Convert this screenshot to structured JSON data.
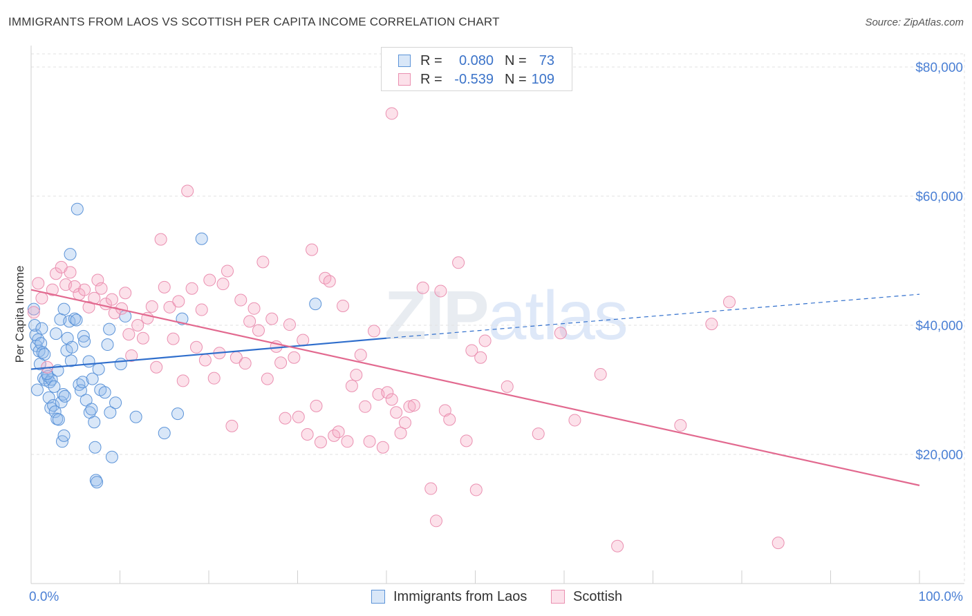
{
  "title": "IMMIGRANTS FROM LAOS VS SCOTTISH PER CAPITA INCOME CORRELATION CHART",
  "source": "Source: ZipAtlas.com",
  "watermark": {
    "part1": "ZIP",
    "part2": "atlas"
  },
  "legend": {
    "rows": [
      {
        "r_label": "R =",
        "r_value": "0.080",
        "n_label": "N =",
        "n_value": "73"
      },
      {
        "r_label": "R =",
        "r_value": "-0.539",
        "n_label": "N =",
        "n_value": "109"
      }
    ]
  },
  "bottom_legend": {
    "items": [
      {
        "label": "Immigrants from Laos"
      },
      {
        "label": "Scottish"
      }
    ]
  },
  "colors": {
    "blue_fill": "rgba(145,185,235,0.35)",
    "blue_stroke": "#5b93d8",
    "blue_line": "#2f6ecc",
    "pink_fill": "rgba(245,170,195,0.35)",
    "pink_stroke": "#ea8fb0",
    "pink_line": "#e2698f",
    "tick_text": "#4a7fd4"
  },
  "chart_data": {
    "type": "scatter",
    "title": "IMMIGRANTS FROM LAOS VS SCOTTISH PER CAPITA INCOME CORRELATION CHART",
    "xlabel": "",
    "ylabel": "Per Capita Income",
    "xlim": [
      0,
      100
    ],
    "ylim": [
      0,
      80000
    ],
    "x_tick_labels": [
      "0.0%",
      "100.0%"
    ],
    "y_ticks": [
      20000,
      40000,
      60000,
      80000
    ],
    "y_tick_labels": [
      "$20,000",
      "$40,000",
      "$60,000",
      "$80,000"
    ],
    "grid": true,
    "series": [
      {
        "name": "Immigrants from Laos",
        "color": "blue",
        "R": 0.08,
        "N": 73,
        "trend": {
          "x0": 0,
          "y0": 33200,
          "x1": 40,
          "y1": 38000,
          "dashed_to_x": 100,
          "dashed_to_y": 44800
        },
        "points": [
          [
            0.3,
            42500
          ],
          [
            0.5,
            38500
          ],
          [
            0.6,
            36800
          ],
          [
            0.8,
            37800
          ],
          [
            0.9,
            36000
          ],
          [
            1.1,
            37200
          ],
          [
            1.3,
            35800
          ],
          [
            1.5,
            35500
          ],
          [
            1.4,
            31800
          ],
          [
            1.6,
            31500
          ],
          [
            1.9,
            32100
          ],
          [
            2.1,
            31200
          ],
          [
            2.3,
            31600
          ],
          [
            2.0,
            28800
          ],
          [
            2.2,
            27200
          ],
          [
            2.5,
            27600
          ],
          [
            2.7,
            26600
          ],
          [
            2.9,
            25500
          ],
          [
            3.1,
            25400
          ],
          [
            3.4,
            28100
          ],
          [
            3.6,
            29300
          ],
          [
            3.8,
            29000
          ],
          [
            3.5,
            22000
          ],
          [
            3.7,
            22900
          ],
          [
            2.8,
            38700
          ],
          [
            3.3,
            40900
          ],
          [
            3.7,
            42500
          ],
          [
            4.0,
            36100
          ],
          [
            4.1,
            38000
          ],
          [
            4.3,
            40600
          ],
          [
            4.5,
            34500
          ],
          [
            4.6,
            36600
          ],
          [
            4.9,
            41000
          ],
          [
            5.1,
            40800
          ],
          [
            4.4,
            51000
          ],
          [
            5.4,
            30800
          ],
          [
            5.6,
            29900
          ],
          [
            5.8,
            31200
          ],
          [
            5.9,
            38300
          ],
          [
            6.0,
            37500
          ],
          [
            6.2,
            28400
          ],
          [
            6.5,
            34400
          ],
          [
            6.6,
            26500
          ],
          [
            6.9,
            31700
          ],
          [
            7.1,
            25000
          ],
          [
            7.2,
            21100
          ],
          [
            7.3,
            16000
          ],
          [
            7.4,
            15700
          ],
          [
            5.2,
            58000
          ],
          [
            7.6,
            33200
          ],
          [
            7.8,
            30000
          ],
          [
            8.3,
            29600
          ],
          [
            8.6,
            37000
          ],
          [
            8.8,
            39400
          ],
          [
            8.9,
            26500
          ],
          [
            9.1,
            19600
          ],
          [
            10.1,
            34000
          ],
          [
            10.6,
            41400
          ],
          [
            11.8,
            25800
          ],
          [
            15.0,
            23300
          ],
          [
            16.5,
            26300
          ],
          [
            17.0,
            41000
          ],
          [
            19.2,
            53400
          ],
          [
            32.0,
            43300
          ],
          [
            0.4,
            40000
          ],
          [
            1.0,
            34000
          ],
          [
            1.8,
            32500
          ],
          [
            2.6,
            30500
          ],
          [
            3.0,
            33000
          ],
          [
            0.7,
            30000
          ],
          [
            1.2,
            39500
          ],
          [
            6.8,
            27000
          ],
          [
            9.5,
            28000
          ]
        ]
      },
      {
        "name": "Scottish",
        "color": "pink",
        "R": -0.539,
        "N": 109,
        "trend": {
          "x0": 0,
          "y0": 45500,
          "x1": 100,
          "y1": 15200
        },
        "points": [
          [
            0.3,
            42000
          ],
          [
            1.2,
            44200
          ],
          [
            1.8,
            33500
          ],
          [
            2.4,
            45500
          ],
          [
            2.8,
            48000
          ],
          [
            3.4,
            49000
          ],
          [
            3.9,
            46300
          ],
          [
            4.4,
            48200
          ],
          [
            4.9,
            46000
          ],
          [
            5.4,
            44800
          ],
          [
            6.0,
            45500
          ],
          [
            6.5,
            42800
          ],
          [
            7.1,
            44200
          ],
          [
            7.5,
            47000
          ],
          [
            7.9,
            45700
          ],
          [
            8.4,
            43300
          ],
          [
            9.1,
            44000
          ],
          [
            9.4,
            41900
          ],
          [
            10.2,
            42600
          ],
          [
            10.6,
            45000
          ],
          [
            11.0,
            38600
          ],
          [
            11.3,
            35300
          ],
          [
            12.0,
            40000
          ],
          [
            12.6,
            38000
          ],
          [
            13.1,
            41100
          ],
          [
            13.6,
            42900
          ],
          [
            14.1,
            33500
          ],
          [
            14.6,
            53300
          ],
          [
            15.0,
            45900
          ],
          [
            15.6,
            42800
          ],
          [
            16.0,
            37900
          ],
          [
            16.6,
            43700
          ],
          [
            17.1,
            31400
          ],
          [
            17.6,
            60800
          ],
          [
            18.1,
            45700
          ],
          [
            18.6,
            36600
          ],
          [
            19.2,
            42400
          ],
          [
            19.6,
            34600
          ],
          [
            20.1,
            47000
          ],
          [
            20.6,
            31800
          ],
          [
            21.2,
            35700
          ],
          [
            21.6,
            46400
          ],
          [
            22.1,
            48400
          ],
          [
            22.6,
            24400
          ],
          [
            23.1,
            35000
          ],
          [
            23.6,
            43900
          ],
          [
            24.1,
            34100
          ],
          [
            24.6,
            40600
          ],
          [
            25.1,
            42600
          ],
          [
            25.6,
            39200
          ],
          [
            26.1,
            49800
          ],
          [
            26.6,
            31700
          ],
          [
            27.1,
            41000
          ],
          [
            27.6,
            36700
          ],
          [
            28.1,
            34200
          ],
          [
            28.6,
            25600
          ],
          [
            29.1,
            40100
          ],
          [
            29.6,
            35000
          ],
          [
            30.1,
            25800
          ],
          [
            30.6,
            37700
          ],
          [
            31.1,
            23100
          ],
          [
            31.6,
            51700
          ],
          [
            32.1,
            27500
          ],
          [
            32.6,
            21900
          ],
          [
            33.1,
            47300
          ],
          [
            33.6,
            46800
          ],
          [
            34.1,
            22900
          ],
          [
            34.6,
            23500
          ],
          [
            35.1,
            43000
          ],
          [
            35.6,
            22000
          ],
          [
            36.1,
            30600
          ],
          [
            36.6,
            32300
          ],
          [
            37.1,
            35400
          ],
          [
            37.6,
            27400
          ],
          [
            38.1,
            22000
          ],
          [
            38.6,
            39100
          ],
          [
            39.1,
            29300
          ],
          [
            39.6,
            21100
          ],
          [
            40.1,
            29600
          ],
          [
            40.6,
            28500
          ],
          [
            41.1,
            26500
          ],
          [
            41.6,
            23300
          ],
          [
            42.1,
            24900
          ],
          [
            42.6,
            27400
          ],
          [
            43.1,
            27600
          ],
          [
            44.1,
            45800
          ],
          [
            45.0,
            14700
          ],
          [
            45.6,
            9700
          ],
          [
            46.1,
            45300
          ],
          [
            46.6,
            26800
          ],
          [
            47.1,
            25400
          ],
          [
            48.1,
            49700
          ],
          [
            49.0,
            22100
          ],
          [
            49.6,
            36100
          ],
          [
            50.1,
            14500
          ],
          [
            50.6,
            35000
          ],
          [
            51.1,
            37600
          ],
          [
            53.6,
            30500
          ],
          [
            57.1,
            23200
          ],
          [
            59.6,
            38800
          ],
          [
            61.2,
            25300
          ],
          [
            64.1,
            32400
          ],
          [
            66.0,
            5800
          ],
          [
            73.1,
            24500
          ],
          [
            76.6,
            40200
          ],
          [
            84.1,
            6300
          ],
          [
            78.6,
            43600
          ],
          [
            40.6,
            72800
          ],
          [
            0.8,
            46500
          ]
        ]
      }
    ]
  }
}
